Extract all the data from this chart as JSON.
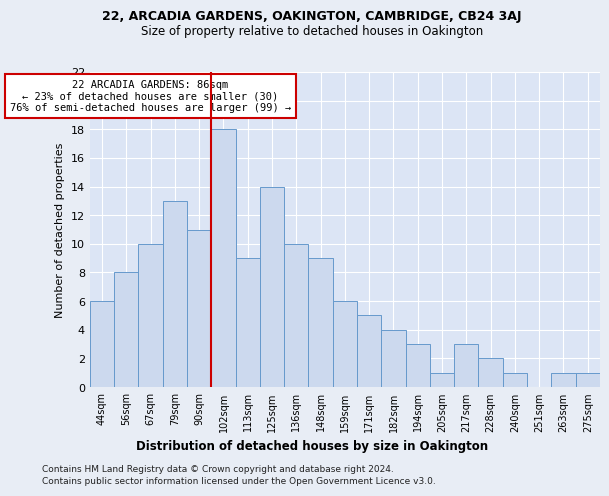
{
  "title1": "22, ARCADIA GARDENS, OAKINGTON, CAMBRIDGE, CB24 3AJ",
  "title2": "Size of property relative to detached houses in Oakington",
  "xlabel": "Distribution of detached houses by size in Oakington",
  "ylabel": "Number of detached properties",
  "bin_labels": [
    "44sqm",
    "56sqm",
    "67sqm",
    "79sqm",
    "90sqm",
    "102sqm",
    "113sqm",
    "125sqm",
    "136sqm",
    "148sqm",
    "159sqm",
    "171sqm",
    "182sqm",
    "194sqm",
    "205sqm",
    "217sqm",
    "228sqm",
    "240sqm",
    "251sqm",
    "263sqm",
    "275sqm"
  ],
  "bar_values": [
    6,
    8,
    10,
    13,
    11,
    18,
    9,
    14,
    10,
    9,
    6,
    5,
    4,
    3,
    1,
    3,
    2,
    1,
    0,
    1,
    1
  ],
  "bar_color": "#ccd9ee",
  "bar_edgecolor": "#6699cc",
  "vline_bin_index": 4,
  "annotation_text": "22 ARCADIA GARDENS: 86sqm\n← 23% of detached houses are smaller (30)\n76% of semi-detached houses are larger (99) →",
  "annotation_box_color": "white",
  "annotation_box_edgecolor": "#cc0000",
  "vline_color": "#cc0000",
  "ylim": [
    0,
    22
  ],
  "yticks": [
    0,
    2,
    4,
    6,
    8,
    10,
    12,
    14,
    16,
    18,
    20,
    22
  ],
  "footer1": "Contains HM Land Registry data © Crown copyright and database right 2024.",
  "footer2": "Contains public sector information licensed under the Open Government Licence v3.0.",
  "fig_facecolor": "#e8edf5",
  "plot_facecolor": "#dce5f5",
  "grid_color": "#ffffff"
}
